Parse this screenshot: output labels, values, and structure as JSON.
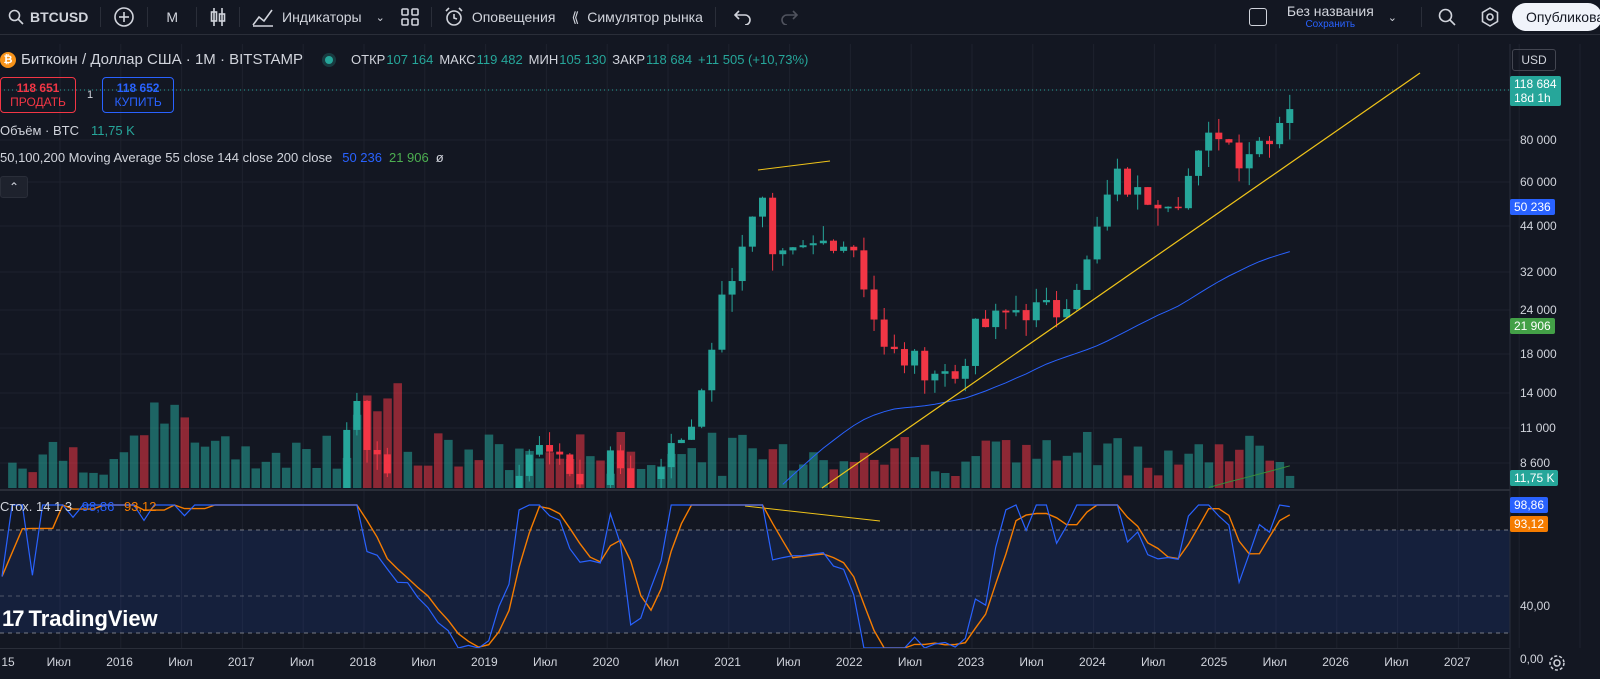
{
  "toolbar": {
    "symbol": "BTCUSD",
    "interval": "M",
    "indicators": "Индикаторы",
    "alerts": "Оповещения",
    "replay": "Симулятор рынка",
    "layout_name": "Без названия",
    "layout_status": "Сохранить",
    "publish": "Опубликовать"
  },
  "legend": {
    "title": "Биткоин / Доллар США · 1M · BITSTAMP",
    "open_label": "ОТКР",
    "open": "107 164",
    "high_label": "МАКС",
    "high": "119 482",
    "low_label": "МИН",
    "low": "105 130",
    "close_label": "ЗАКР",
    "close": "118 684",
    "change": "+11 505 (+10,73%)",
    "sell_price": "118 651",
    "sell_label": "ПРОДАТЬ",
    "spread": "1",
    "buy_price": "118 652",
    "buy_label": "КУПИТЬ",
    "volume_label": "Объём · BTC",
    "volume_value": "11,75 K",
    "ma_label": "50,100,200 Moving Average 55 close 144 close 200 close",
    "ma1_value": "50 236",
    "ma2_value": "21 906",
    "ma3_value": "ø"
  },
  "stoch": {
    "label": "Стох. 14 1 3",
    "k_value": "98,86",
    "d_value": "93,12"
  },
  "price_axis": {
    "currency": "USD",
    "ticks": [
      "80 000",
      "60 000",
      "44 000",
      "32 000",
      "24 000",
      "18 000",
      "14 000",
      "11 000",
      "8 600"
    ],
    "stoch_ticks": [
      "40,00",
      "0,00"
    ]
  },
  "tags": {
    "last_price": "118 684",
    "countdown": "18d 1h",
    "ma1": "50 236",
    "ma2": "21 906",
    "volume": "11,75 K",
    "stoch_k": "98,86",
    "stoch_d": "93,12"
  },
  "time_axis": [
    "15",
    "Июл",
    "2016",
    "Июл",
    "2017",
    "Июл",
    "2018",
    "Июл",
    "2019",
    "Июл",
    "2020",
    "Июл",
    "2021",
    "Июл",
    "2022",
    "Июл",
    "2023",
    "Июл",
    "2024",
    "Июл",
    "2025",
    "Июл",
    "2026",
    "Июл",
    "2027"
  ],
  "logo_text": "TradingView",
  "colors": {
    "up": "#26a69a",
    "down": "#f23645",
    "ma1": "#2962ff",
    "ma2": "#388e3c",
    "stoch_k": "#2962ff",
    "stoch_d": "#f57c00",
    "trend": "#f0c419"
  },
  "chart_data": {
    "type": "candlestick",
    "symbol": "BTCUSD",
    "timeframe": "1M",
    "scale": "log",
    "approx_monthly_ohlc": [
      [
        "2020-10",
        10800,
        14000,
        10400,
        13800
      ],
      [
        "2020-11",
        13800,
        19800,
        13200,
        19700
      ],
      [
        "2020-12",
        19700,
        29000,
        17600,
        28900
      ],
      [
        "2021-01",
        28900,
        41900,
        28100,
        33100
      ],
      [
        "2021-02",
        33100,
        58300,
        32300,
        45200
      ],
      [
        "2021-03",
        45200,
        61700,
        45000,
        58800
      ],
      [
        "2021-04",
        58800,
        64800,
        47000,
        57700
      ],
      [
        "2021-05",
        57700,
        59500,
        30000,
        37300
      ],
      [
        "2021-06",
        37300,
        41300,
        28800,
        35000
      ],
      [
        "2021-07",
        35000,
        42300,
        29300,
        41500
      ],
      [
        "2021-08",
        41500,
        50500,
        37300,
        47100
      ],
      [
        "2021-09",
        47100,
        52900,
        39600,
        43800
      ],
      [
        "2021-10",
        43800,
        67000,
        43300,
        61300
      ],
      [
        "2021-11",
        61300,
        69000,
        53300,
        57000
      ],
      [
        "2021-12",
        57000,
        59100,
        42000,
        46200
      ],
      [
        "2022-01",
        46200,
        47900,
        32900,
        38500
      ],
      [
        "2022-02",
        38500,
        45800,
        34300,
        43200
      ],
      [
        "2022-03",
        43200,
        48200,
        37200,
        45500
      ],
      [
        "2022-04",
        45500,
        47400,
        37700,
        37700
      ],
      [
        "2022-05",
        37700,
        39800,
        26700,
        31800
      ],
      [
        "2022-06",
        31800,
        31900,
        17600,
        19900
      ],
      [
        "2025-06",
        104600,
        110600,
        98200,
        107164
      ],
      [
        "2025-07",
        107164,
        119482,
        105130,
        118684
      ]
    ],
    "moving_averages": [
      {
        "name": "MA 55",
        "last": 50236
      },
      {
        "name": "MA 144",
        "last": 21906
      }
    ],
    "stochastic": {
      "k": 98.86,
      "d": 93.12,
      "upper_band": 80,
      "lower_band": 20
    },
    "annotations": [
      "rising trendline from 2022 low",
      "bearish divergence lines 2021 price vs stochastic"
    ]
  }
}
